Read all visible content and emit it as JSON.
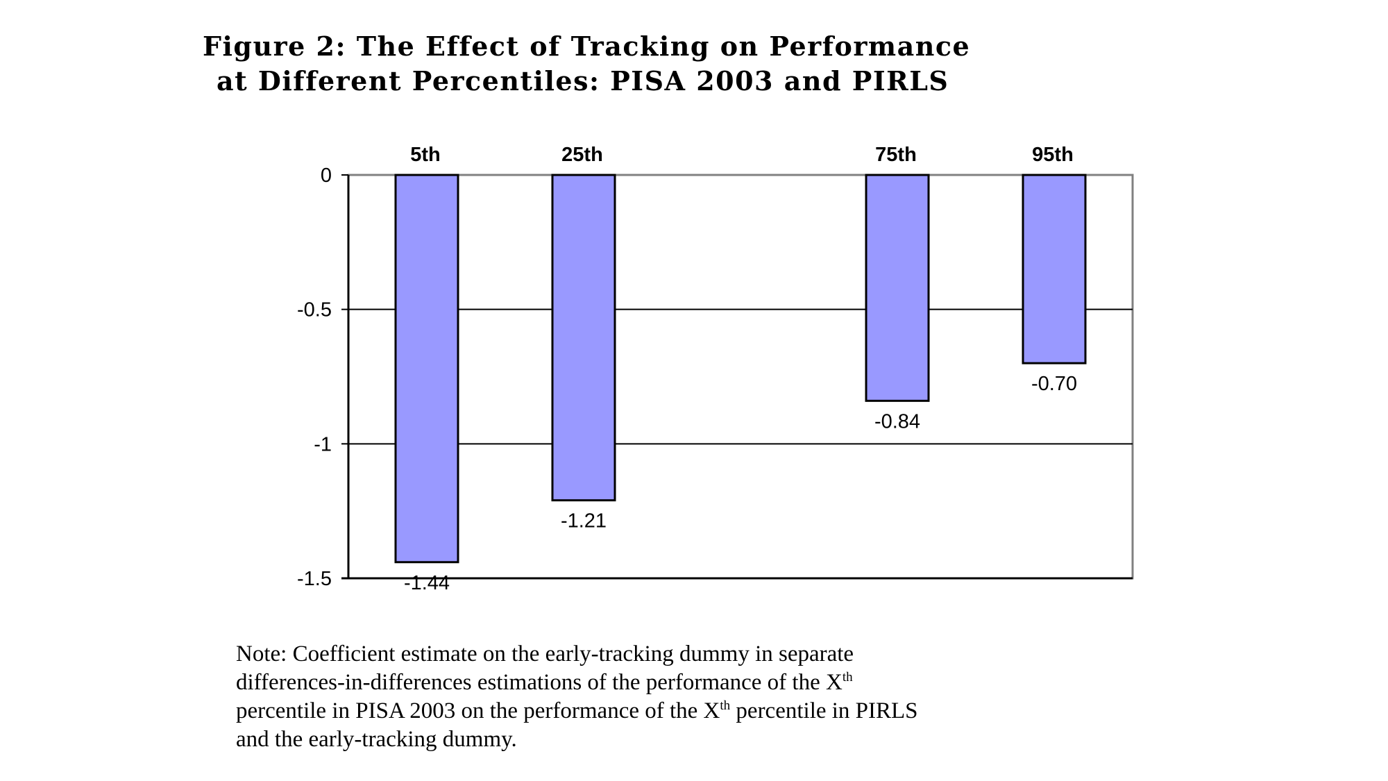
{
  "chart_data": {
    "type": "bar",
    "title_line1": "Figure 2: The Effect of Tracking on Performance",
    "title_line2": "at Different Percentiles: PISA 2003 and PIRLS",
    "categories": [
      "5th",
      "25th",
      "",
      "75th",
      "95th"
    ],
    "values": [
      -1.44,
      -1.21,
      null,
      -0.84,
      -0.7
    ],
    "data_labels": [
      "-1.44",
      "-1.21",
      "",
      "-0.84",
      "-0.70"
    ],
    "y_ticks": [
      "0",
      "-0.5",
      "-1",
      "-1.5"
    ],
    "ylim": [
      -1.5,
      0
    ],
    "bar_color": "#9999ff",
    "grid": true,
    "legend": "none"
  },
  "note": {
    "line1": "Note: Coefficient estimate on the early-tracking dummy in separate",
    "line2_pre": "differences-in-differences estimations of the performance of the X",
    "line2_sup": "th",
    "line3_pre": "percentile in PISA 2003 on the performance of the X",
    "line3_sup": "th",
    "line3_post": " percentile in PIRLS",
    "line4": "and the early-tracking dummy."
  }
}
